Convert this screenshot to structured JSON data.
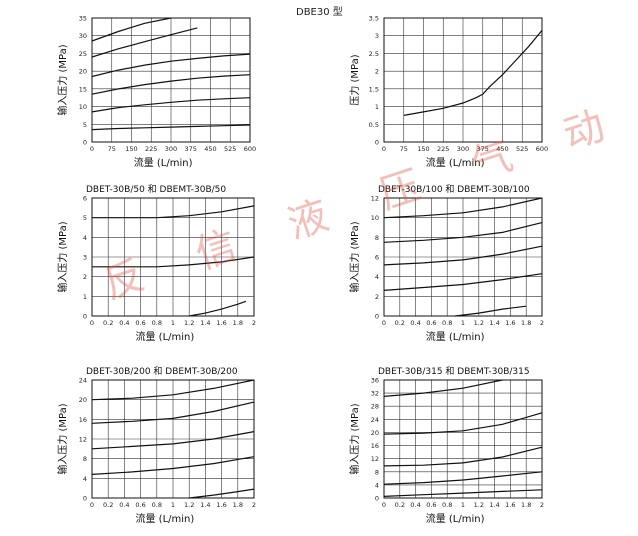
{
  "header": {
    "title": "DBE30 型"
  },
  "watermark": {
    "text": "反 信 液 压 气 动",
    "color": "#e24a3a"
  },
  "chart_data": [
    {
      "type": "line",
      "title": "",
      "xlabel": "流量 (L/min)",
      "ylabel": "输入压力 (MPa)",
      "xlim": [
        0,
        600
      ],
      "ylim": [
        0,
        35
      ],
      "xticks": [
        0,
        75,
        150,
        225,
        300,
        375,
        450,
        525,
        600
      ],
      "yticks": [
        0,
        5,
        10,
        15,
        20,
        25,
        30,
        35
      ],
      "grid": true,
      "series": [
        {
          "x": [
            0,
            100,
            200,
            300,
            400,
            500,
            600
          ],
          "y": [
            3.5,
            3.8,
            4.0,
            4.2,
            4.4,
            4.6,
            4.8
          ]
        },
        {
          "x": [
            0,
            100,
            200,
            300,
            400,
            500,
            600
          ],
          "y": [
            8.5,
            9.7,
            10.5,
            11.2,
            11.8,
            12.2,
            12.5
          ]
        },
        {
          "x": [
            0,
            100,
            200,
            300,
            400,
            500,
            600
          ],
          "y": [
            13.5,
            15.0,
            16.2,
            17.2,
            18.0,
            18.6,
            19.0
          ]
        },
        {
          "x": [
            0,
            100,
            200,
            300,
            400,
            500,
            600
          ],
          "y": [
            18.5,
            20.3,
            21.7,
            22.8,
            23.6,
            24.3,
            24.8
          ]
        },
        {
          "x": [
            0,
            100,
            200,
            300,
            400
          ],
          "y": [
            24.0,
            26.3,
            28.3,
            30.3,
            32.2
          ]
        },
        {
          "x": [
            0,
            100,
            200,
            300
          ],
          "y": [
            28.5,
            31.2,
            33.5,
            35.0
          ]
        }
      ]
    },
    {
      "type": "line",
      "title": "",
      "xlabel": "流量 (L/min)",
      "ylabel": "压力 (MPa)",
      "xlim": [
        0,
        600
      ],
      "ylim": [
        0,
        3.5
      ],
      "xticks": [
        0,
        75,
        150,
        225,
        300,
        375,
        450,
        525,
        600
      ],
      "yticks": [
        0,
        0.5,
        1.0,
        1.5,
        2.0,
        2.5,
        3.0,
        3.5
      ],
      "grid": true,
      "series": [
        {
          "x": [
            75,
            150,
            225,
            300,
            350,
            375,
            400,
            450,
            500,
            550,
            600
          ],
          "y": [
            0.75,
            0.85,
            0.95,
            1.1,
            1.25,
            1.35,
            1.55,
            1.9,
            2.3,
            2.7,
            3.15
          ]
        }
      ]
    },
    {
      "type": "line",
      "title": "DBET-30B/50 和 DBEMT-30B/50",
      "xlabel": "流量 (L/min)",
      "ylabel": "输入压力 (MPa)",
      "xlim": [
        0,
        2.0
      ],
      "ylim": [
        0,
        6
      ],
      "xticks": [
        0,
        0.2,
        0.4,
        0.6,
        0.8,
        1.0,
        1.2,
        1.4,
        1.6,
        1.8,
        2.0
      ],
      "yticks": [
        0,
        1,
        2,
        3,
        4,
        5,
        6
      ],
      "grid": true,
      "series": [
        {
          "x": [
            1.2,
            1.4,
            1.6,
            1.8,
            1.9
          ],
          "y": [
            0.0,
            0.15,
            0.35,
            0.6,
            0.75
          ]
        },
        {
          "x": [
            0,
            0.4,
            0.8,
            1.2,
            1.6,
            2.0
          ],
          "y": [
            2.5,
            2.5,
            2.5,
            2.6,
            2.75,
            3.0
          ]
        },
        {
          "x": [
            0,
            0.4,
            0.8,
            1.2,
            1.6,
            2.0
          ],
          "y": [
            5.0,
            5.0,
            5.0,
            5.1,
            5.3,
            5.6
          ]
        }
      ]
    },
    {
      "type": "line",
      "title": "DBET-30B/100 和 DBEMT-30B/100",
      "xlabel": "流量 (L/min)",
      "ylabel": "输入压力 (MPa)",
      "xlim": [
        0,
        2.0
      ],
      "ylim": [
        0,
        12
      ],
      "xticks": [
        0,
        0.2,
        0.4,
        0.6,
        0.8,
        1.0,
        1.2,
        1.4,
        1.6,
        1.8,
        2.0
      ],
      "yticks": [
        0,
        2,
        4,
        6,
        8,
        10,
        12
      ],
      "grid": true,
      "series": [
        {
          "x": [
            0.9,
            1.2,
            1.5,
            1.8
          ],
          "y": [
            0.0,
            0.3,
            0.7,
            1.0
          ]
        },
        {
          "x": [
            0,
            0.5,
            1.0,
            1.5,
            2.0
          ],
          "y": [
            2.6,
            2.9,
            3.2,
            3.7,
            4.3
          ]
        },
        {
          "x": [
            0,
            0.5,
            1.0,
            1.5,
            2.0
          ],
          "y": [
            5.2,
            5.4,
            5.7,
            6.3,
            7.1
          ]
        },
        {
          "x": [
            0,
            0.5,
            1.0,
            1.5,
            2.0
          ],
          "y": [
            7.5,
            7.7,
            8.0,
            8.5,
            9.5
          ]
        },
        {
          "x": [
            0,
            0.5,
            1.0,
            1.5,
            2.0
          ],
          "y": [
            10.0,
            10.2,
            10.5,
            11.1,
            12.0
          ]
        }
      ]
    },
    {
      "type": "line",
      "title": "DBET-30B/200 和 DBEMT-30B/200",
      "xlabel": "流量 (L/min)",
      "ylabel": "输入压力 (MPa)",
      "xlim": [
        0,
        2.0
      ],
      "ylim": [
        0,
        24
      ],
      "xticks": [
        0,
        0.2,
        0.4,
        0.6,
        0.8,
        1.0,
        1.2,
        1.4,
        1.6,
        1.8,
        2.0
      ],
      "yticks": [
        0,
        4,
        8,
        12,
        16,
        20,
        24
      ],
      "grid": true,
      "series": [
        {
          "x": [
            1.2,
            1.5,
            1.8,
            2.0
          ],
          "y": [
            0.0,
            0.6,
            1.3,
            1.8
          ]
        },
        {
          "x": [
            0,
            0.5,
            1.0,
            1.5,
            2.0
          ],
          "y": [
            4.8,
            5.3,
            6.0,
            7.0,
            8.4
          ]
        },
        {
          "x": [
            0,
            0.5,
            1.0,
            1.5,
            2.0
          ],
          "y": [
            10.0,
            10.5,
            11.0,
            12.0,
            13.5
          ]
        },
        {
          "x": [
            0,
            0.5,
            1.0,
            1.5,
            2.0
          ],
          "y": [
            15.2,
            15.6,
            16.2,
            17.6,
            19.5
          ]
        },
        {
          "x": [
            0,
            0.5,
            1.0,
            1.5,
            2.0
          ],
          "y": [
            20.0,
            20.3,
            21.0,
            22.3,
            24.0
          ]
        }
      ]
    },
    {
      "type": "line",
      "title": "DBET-30B/315 和 DBEMT-30B/315",
      "xlabel": "流量 (L/min)",
      "ylabel": "输入压力 (MPa)",
      "xlim": [
        0,
        2.0
      ],
      "ylim": [
        0,
        36
      ],
      "xticks": [
        0,
        0.2,
        0.4,
        0.6,
        0.8,
        1.0,
        1.2,
        1.4,
        1.6,
        1.8,
        2.0
      ],
      "yticks": [
        0,
        4,
        8,
        12,
        16,
        20,
        24,
        28,
        32,
        36
      ],
      "grid": true,
      "series": [
        {
          "x": [
            0,
            0.5,
            1.0,
            1.5,
            2.0
          ],
          "y": [
            0.5,
            1.0,
            1.5,
            2.0,
            2.5
          ]
        },
        {
          "x": [
            0,
            0.5,
            1.0,
            1.5,
            2.0
          ],
          "y": [
            4.2,
            4.7,
            5.5,
            6.7,
            8.0
          ]
        },
        {
          "x": [
            0,
            0.5,
            1.0,
            1.5,
            2.0
          ],
          "y": [
            9.8,
            10.0,
            10.7,
            12.5,
            15.5
          ]
        },
        {
          "x": [
            0,
            0.5,
            1.0,
            1.5,
            2.0
          ],
          "y": [
            19.5,
            19.8,
            20.5,
            22.5,
            26.0
          ]
        },
        {
          "x": [
            0,
            0.5,
            1.0,
            1.5
          ],
          "y": [
            31.0,
            32.0,
            33.5,
            36.0
          ]
        }
      ]
    }
  ]
}
